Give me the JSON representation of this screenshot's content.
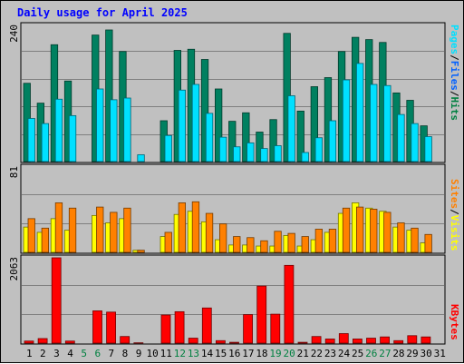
{
  "title": "Daily usage for April 2025",
  "panels": {
    "top": {
      "scale_label": "240",
      "legend": [
        "Pages",
        "/",
        "Files",
        "/",
        "Hits"
      ],
      "legend_colors": [
        "#00e0ff",
        "#000000",
        "#0060ff",
        "#000000",
        "#008040"
      ]
    },
    "middle": {
      "scale_label": "81",
      "legend": [
        "Sites",
        "/",
        "Visits"
      ],
      "legend_colors": [
        "#ff8000",
        "#000000",
        "#ffff00"
      ]
    },
    "bottom": {
      "scale_label": "2063",
      "legend": [
        "KBytes"
      ],
      "legend_colors": [
        "#ff0000"
      ]
    }
  },
  "colors": {
    "hits": "#008060",
    "files": "#0060ff",
    "pages": "#00e0ff",
    "visits": "#ffff00",
    "sites": "#ff8000",
    "kbytes": "#ff0000",
    "weekday_label": "#000000",
    "weekend_label": "#008040"
  },
  "chart_data": [
    {
      "type": "bar",
      "title": "Daily usage for April 2025",
      "categories": [
        "1",
        "2",
        "3",
        "4",
        "5",
        "6",
        "7",
        "8",
        "9",
        "10",
        "11",
        "12",
        "13",
        "14",
        "15",
        "16",
        "17",
        "18",
        "19",
        "20",
        "21",
        "22",
        "23",
        "24",
        "25",
        "26",
        "27",
        "28",
        "29",
        "30",
        "31"
      ],
      "weekend_days": [
        "5",
        "6",
        "12",
        "13",
        "19",
        "20",
        "26",
        "27"
      ],
      "ylim": [
        0,
        240
      ],
      "series": [
        {
          "name": "Hits",
          "values": [
            138,
            103,
            206,
            142,
            0,
            223,
            232,
            194,
            0,
            0,
            72,
            196,
            198,
            180,
            128,
            71,
            86,
            52,
            74,
            226,
            89,
            132,
            148,
            194,
            219,
            215,
            210,
            121,
            108,
            63,
            0
          ]
        },
        {
          "name": "Pages",
          "values": [
            76,
            67,
            110,
            81,
            0,
            128,
            109,
            112,
            12,
            0,
            46,
            126,
            136,
            85,
            43,
            26,
            33,
            23,
            28,
            116,
            16,
            42,
            72,
            144,
            173,
            136,
            134,
            83,
            67,
            44,
            0
          ]
        }
      ]
    },
    {
      "type": "bar",
      "ylim": [
        0,
        81
      ],
      "series": [
        {
          "name": "Visits",
          "values": [
            24,
            19,
            32,
            21,
            0,
            35,
            28,
            32,
            2,
            0,
            15,
            36,
            39,
            29,
            12,
            7,
            7,
            6,
            6,
            16,
            6,
            12,
            19,
            37,
            47,
            42,
            39,
            24,
            21,
            9,
            0
          ]
        },
        {
          "name": "Sites",
          "values": [
            32,
            23,
            47,
            42,
            0,
            43,
            38,
            42,
            2,
            0,
            19,
            47,
            48,
            37,
            27,
            15,
            14,
            11,
            20,
            18,
            15,
            22,
            22,
            42,
            43,
            41,
            38,
            28,
            23,
            17,
            0
          ]
        }
      ]
    },
    {
      "type": "bar",
      "ylim": [
        0,
        2063
      ],
      "series": [
        {
          "name": "KBytes",
          "values": [
            50,
            110,
            2063,
            50,
            0,
            780,
            750,
            160,
            8,
            0,
            680,
            760,
            120,
            850,
            60,
            20,
            690,
            1380,
            700,
            1880,
            20,
            160,
            100,
            230,
            100,
            120,
            150,
            60,
            180,
            150,
            0
          ]
        }
      ]
    }
  ]
}
